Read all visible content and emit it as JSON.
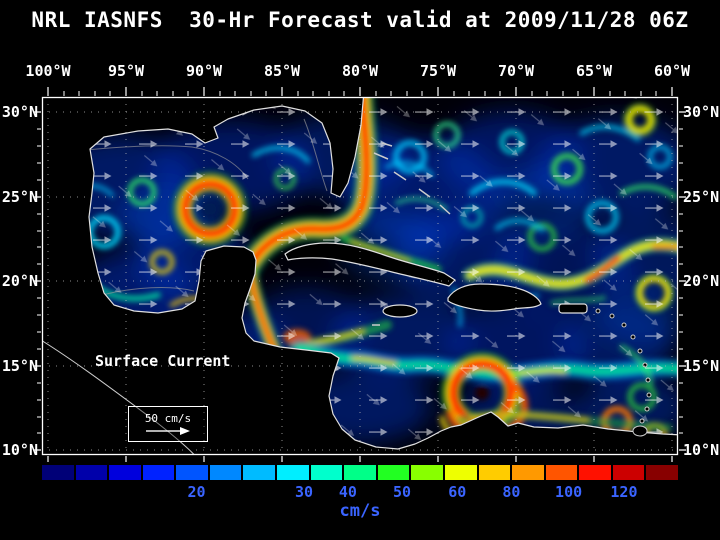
{
  "title": "NRL IASNFS  30-Hr Forecast valid at 2009/11/28 06Z",
  "axes": {
    "lon_labels": [
      "100°W",
      "95°W",
      "90°W",
      "85°W",
      "80°W",
      "75°W",
      "70°W",
      "65°W",
      "60°W"
    ],
    "lat_labels": [
      "30°N",
      "25°N",
      "20°N",
      "15°N",
      "10°N"
    ]
  },
  "legend": {
    "title": "Surface Current",
    "scale_label": "50 cm/s"
  },
  "colorbar": {
    "unit": "cm/s",
    "ticks": [
      {
        "label": "20",
        "pos": 24.3
      },
      {
        "label": "30",
        "pos": 41.2
      },
      {
        "label": "40",
        "pos": 48.1
      },
      {
        "label": "50",
        "pos": 56.6
      },
      {
        "label": "60",
        "pos": 65.3
      },
      {
        "label": "80",
        "pos": 73.8
      },
      {
        "label": "100",
        "pos": 82.8
      },
      {
        "label": "120",
        "pos": 91.5
      }
    ],
    "colors": [
      "#000077",
      "#0000aa",
      "#0000dd",
      "#0022ff",
      "#0055ff",
      "#0088ff",
      "#00bbff",
      "#00eeff",
      "#00ffcc",
      "#00ff88",
      "#22ff22",
      "#88ff00",
      "#eeff00",
      "#ffcc00",
      "#ff9900",
      "#ff5500",
      "#ff1100",
      "#cc0000",
      "#880000"
    ]
  }
}
